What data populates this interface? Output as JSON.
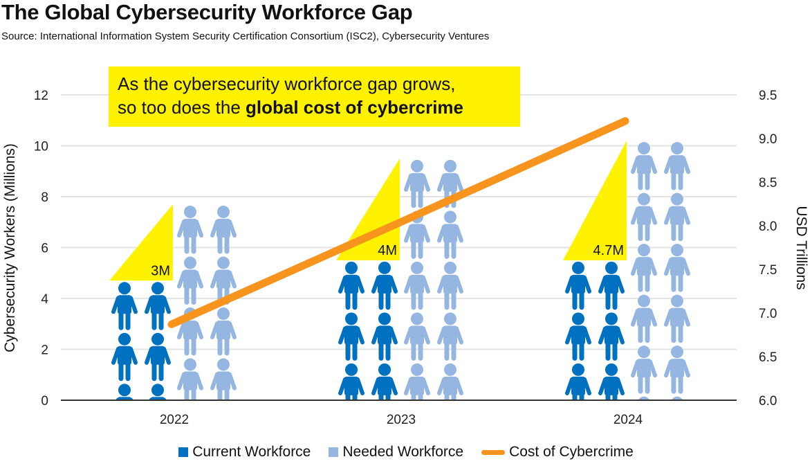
{
  "title": "The Global Cybersecurity Workforce Gap",
  "subtitle": "Source: International Information System Security Certification Consortium (ISC2), Cybersecurity Ventures",
  "callout": {
    "line1": "As the cybersecurity workforce gap grows,",
    "line2_prefix": "so too does the ",
    "line2_bold": "global cost of cybercrime"
  },
  "legend": {
    "current": "Current Workforce",
    "needed": "Needed Workforce",
    "cost": "Cost of Cybercrime"
  },
  "colors": {
    "current": "#0070c0",
    "needed": "#95b6e0",
    "cost": "#f7941d",
    "gap_triangle": "#fff200",
    "grid": "#e3e3e3"
  },
  "chart_data": {
    "type": "pictograph-bar-with-line",
    "title": "The Global Cybersecurity Workforce Gap",
    "categories": [
      "2022",
      "2023",
      "2024"
    ],
    "ylabel": "Cybersecurity Workers (Millions)",
    "ylim": [
      0,
      12
    ],
    "yticks": [
      "0",
      "2",
      "4",
      "6",
      "8",
      "10",
      "12"
    ],
    "y2label": "USD Trillions",
    "y2lim": [
      6.0,
      9.5
    ],
    "y2ticks": [
      "6.0",
      "6.5",
      "7.0",
      "7.5",
      "8.0",
      "8.5",
      "9.0",
      "9.5"
    ],
    "grid": true,
    "legend_position": "bottom",
    "series": [
      {
        "name": "Current Workforce",
        "values": [
          4.7,
          5.5,
          5.5
        ],
        "axis": "left"
      },
      {
        "name": "Needed Workforce",
        "values": [
          7.7,
          9.5,
          10.2
        ],
        "axis": "left"
      },
      {
        "name": "Cost of Cybercrime",
        "values": [
          6.87,
          8.03,
          9.2
        ],
        "axis": "right"
      }
    ],
    "gap_labels": [
      "3M",
      "4M",
      "4.7M"
    ]
  }
}
